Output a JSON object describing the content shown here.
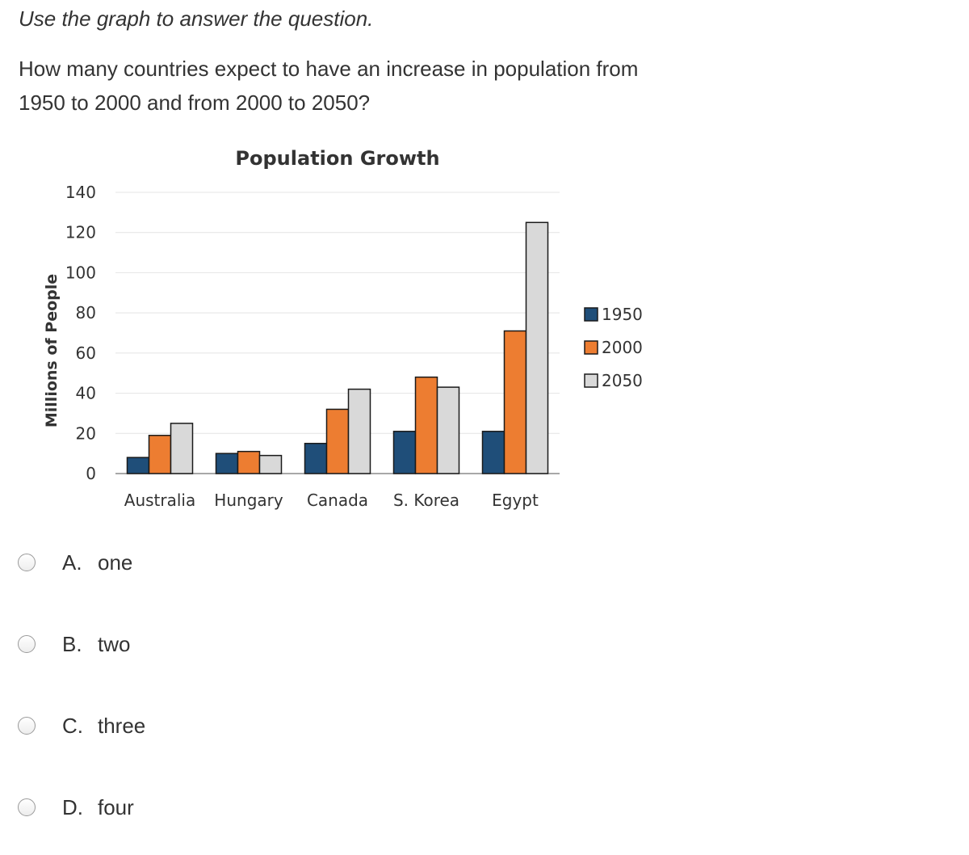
{
  "instruction": "Use the graph to answer the question.",
  "question": "How many countries expect to have an increase in population from 1950 to 2000 and from 2000 to 2050?",
  "options": [
    {
      "letter": "A.",
      "text": "one"
    },
    {
      "letter": "B.",
      "text": "two"
    },
    {
      "letter": "C.",
      "text": "three"
    },
    {
      "letter": "D.",
      "text": "four"
    }
  ],
  "chart_data": {
    "type": "bar",
    "title": "Population Growth",
    "xlabel": "",
    "ylabel": "Millions of People",
    "ylim": [
      0,
      140
    ],
    "yticks": [
      0,
      20,
      40,
      60,
      80,
      100,
      120,
      140
    ],
    "grid": true,
    "legend_position": "right",
    "categories": [
      "Australia",
      "Hungary",
      "Canada",
      "S. Korea",
      "Egypt"
    ],
    "series": [
      {
        "name": "1950",
        "color": "#1f4e79",
        "values": [
          8,
          10,
          15,
          21,
          21
        ]
      },
      {
        "name": "2000",
        "color": "#ed7d31",
        "values": [
          19,
          11,
          32,
          48,
          71
        ]
      },
      {
        "name": "2050",
        "color": "#d9d9d9",
        "values": [
          25,
          9,
          42,
          43,
          125
        ]
      }
    ]
  }
}
